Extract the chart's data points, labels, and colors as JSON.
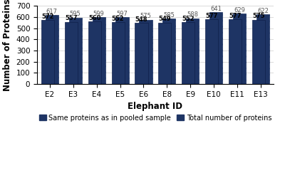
{
  "elephants": [
    "E2",
    "E3",
    "E4",
    "E5",
    "E6",
    "E8",
    "E9",
    "E10",
    "E11",
    "E13"
  ],
  "same_proteins": [
    572,
    557,
    560,
    552,
    548,
    549,
    552,
    577,
    577,
    575
  ],
  "total_proteins": [
    617,
    595,
    599,
    597,
    575,
    585,
    588,
    641,
    629,
    622
  ],
  "bar_color_solid": "#1e3464",
  "bar_color_hatch_face": "#1e3464",
  "bar_color_hatch_edge": "#1e3464",
  "hatch_pattern": "////",
  "xlabel": "Elephant ID",
  "ylabel": "Number of Proteins",
  "ylim": [
    0,
    700
  ],
  "yticks": [
    0,
    100,
    200,
    300,
    400,
    500,
    600,
    700
  ],
  "legend_solid": "Same proteins as in pooled sample",
  "legend_hatch": "Total number of proteins",
  "value_fontsize": 6.0,
  "axis_label_fontsize": 8.5,
  "tick_fontsize": 7.5,
  "legend_fontsize": 7.0,
  "background_color": "#ffffff",
  "grid_color": "#cccccc"
}
